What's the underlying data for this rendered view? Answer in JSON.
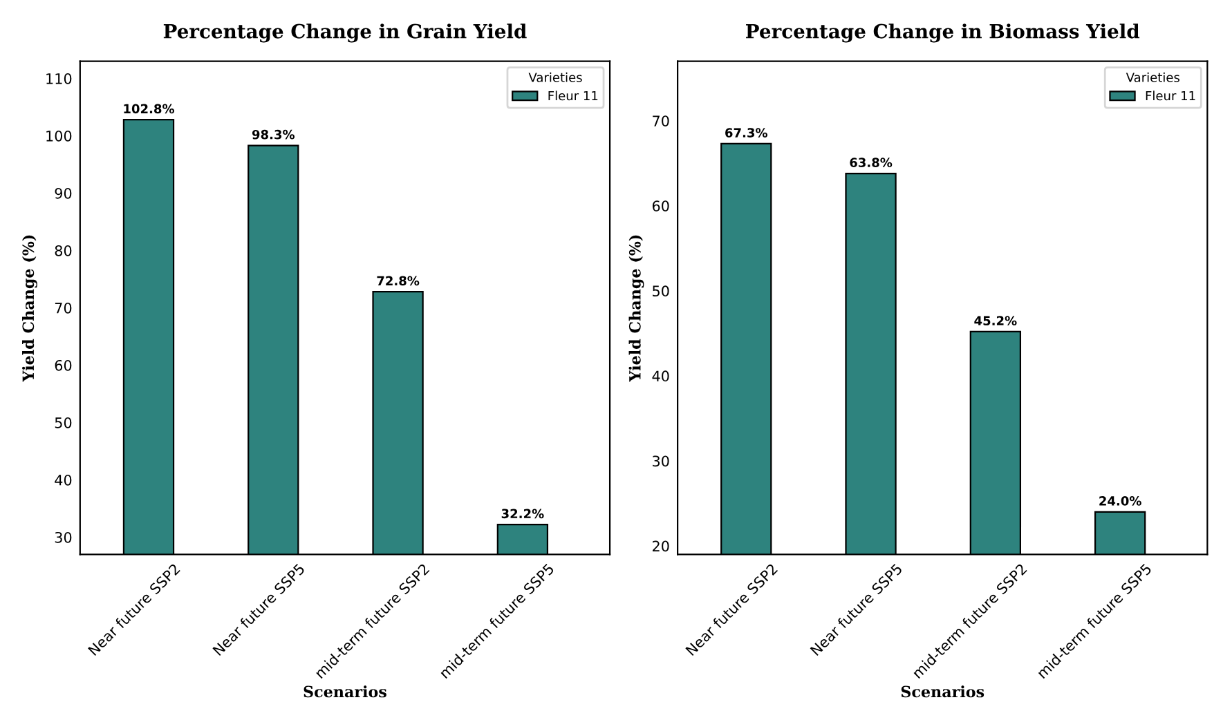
{
  "chart_data": [
    {
      "type": "bar",
      "title": "Percentage Change in Grain Yield",
      "xlabel": "Scenarios",
      "ylabel": "Yield Change (%)",
      "legend_title": "Varieties",
      "categories": [
        "Near future SSP2",
        "Near future SSP5",
        "mid-term future SSP2",
        "mid-term future SSP5"
      ],
      "series": [
        {
          "name": "Fleur 11",
          "color": "#2e837e",
          "values": [
            102.8,
            98.3,
            72.8,
            32.2
          ],
          "value_labels": [
            "102.8%",
            "98.3%",
            "72.8%",
            "32.2%"
          ]
        }
      ],
      "ylim": [
        27,
        113
      ],
      "yticks": [
        30,
        40,
        50,
        60,
        70,
        80,
        90,
        100,
        110
      ],
      "legend": "top right",
      "grid": false
    },
    {
      "type": "bar",
      "title": "Percentage Change in Biomass Yield",
      "xlabel": "Scenarios",
      "ylabel": "Yield Change (%)",
      "legend_title": "Varieties",
      "categories": [
        "Near future SSP2",
        "Near future SSP5",
        "mid-term future SSP2",
        "mid-term future SSP5"
      ],
      "series": [
        {
          "name": "Fleur 11",
          "color": "#2e837e",
          "values": [
            67.3,
            63.8,
            45.2,
            24.0
          ],
          "value_labels": [
            "67.3%",
            "63.8%",
            "45.2%",
            "24.0%"
          ]
        }
      ],
      "ylim": [
        19,
        77
      ],
      "yticks": [
        20,
        30,
        40,
        50,
        60,
        70
      ],
      "legend": "top right",
      "grid": false
    }
  ]
}
